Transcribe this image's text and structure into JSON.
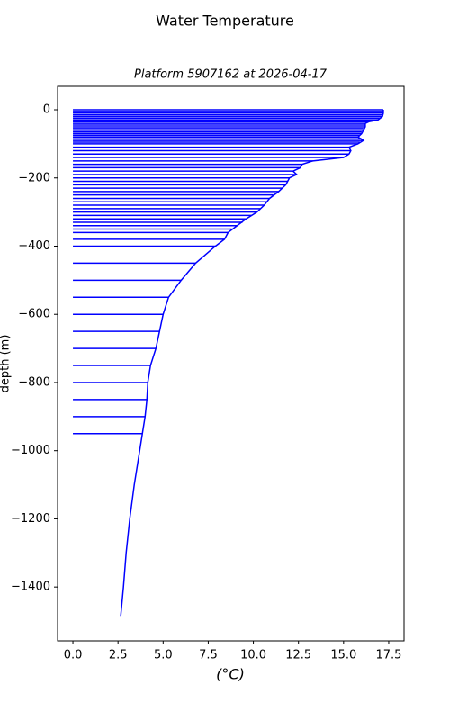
{
  "chart_data": {
    "type": "line",
    "title": "Water Temperature",
    "subtitle": "Platform 5907162 at 2026-04-17",
    "x_label": "(°C)",
    "y_label": "depth (m)",
    "xlim": [
      -0.85,
      18.35
    ],
    "ylim": [
      -1558,
      68.7
    ],
    "xticks": [
      {
        "value": 0,
        "label": "0.0"
      },
      2.5,
      {
        "value": 5,
        "label": "5.0"
      },
      7.5,
      {
        "value": 10,
        "label": "10.0"
      },
      12.5,
      {
        "value": 15,
        "label": "15.0"
      },
      17.5
    ],
    "yticks": [
      0,
      {
        "value": -200,
        "label": "−200"
      },
      {
        "value": -400,
        "label": "−400"
      },
      {
        "value": -600,
        "label": "−600"
      },
      {
        "value": -800,
        "label": "−800"
      },
      {
        "value": -1000,
        "label": "−1000"
      },
      {
        "value": -1200,
        "label": "−1200"
      },
      {
        "value": -1400,
        "label": "−1400"
      }
    ],
    "grid": false,
    "series": [
      {
        "style": "stems",
        "color": "#0000ff",
        "values": [
          17.2,
          17.2,
          17.2,
          17.2,
          17.15,
          17.0,
          16.9,
          16.4,
          16.2,
          16.2,
          16.2,
          16.1,
          16.1,
          16.0,
          16.0,
          15.9,
          15.8,
          16.0,
          16.1,
          15.9,
          15.8,
          15.3,
          15.4,
          15.3,
          15.0,
          13.3,
          12.7,
          12.6,
          12.2,
          12.4,
          12.0,
          11.9,
          11.8,
          11.6,
          11.4,
          11.1,
          10.9,
          10.8,
          10.6,
          10.4,
          10.2,
          9.9,
          9.6,
          9.4,
          9.1,
          8.8,
          8.6,
          8.4,
          7.9,
          6.8,
          6.0,
          5.3,
          5.0,
          4.8,
          4.6,
          4.3,
          4.15,
          4.1,
          4.0,
          3.85
        ],
        "depth": [
          0,
          -5,
          -10,
          -15,
          -20,
          -25,
          -30,
          -35,
          -40,
          -45,
          -50,
          -55,
          -60,
          -65,
          -70,
          -75,
          -80,
          -85,
          -90,
          -95,
          -100,
          -110,
          -120,
          -130,
          -140,
          -150,
          -160,
          -170,
          -180,
          -190,
          -200,
          -210,
          -220,
          -230,
          -240,
          -250,
          -260,
          -270,
          -280,
          -290,
          -300,
          -310,
          -320,
          -330,
          -340,
          -350,
          -360,
          -380,
          -400,
          -450,
          -500,
          -550,
          -600,
          -650,
          -700,
          -750,
          -800,
          -850,
          -900,
          -950
        ]
      },
      {
        "style": "profile",
        "color": "#0000ff",
        "values": [
          17.2,
          17.2,
          17.2,
          17.15,
          16.9,
          16.4,
          16.2,
          16.2,
          16.1,
          16.0,
          15.8,
          16.1,
          15.8,
          15.3,
          15.4,
          15.3,
          15.0,
          13.3,
          12.7,
          12.6,
          12.2,
          12.4,
          12.0,
          11.8,
          11.4,
          10.9,
          10.6,
          10.2,
          9.6,
          9.1,
          8.6,
          8.4,
          7.9,
          6.8,
          6.0,
          5.3,
          5.0,
          4.8,
          4.6,
          4.3,
          4.15,
          4.1,
          4.0,
          3.85,
          3.7,
          3.4,
          3.15,
          2.95,
          2.8,
          2.65
        ],
        "depth": [
          0,
          -5,
          -10,
          -20,
          -30,
          -35,
          -40,
          -50,
          -60,
          -70,
          -80,
          -90,
          -100,
          -110,
          -120,
          -130,
          -140,
          -150,
          -160,
          -170,
          -180,
          -190,
          -200,
          -220,
          -240,
          -260,
          -280,
          -300,
          -320,
          -340,
          -360,
          -380,
          -400,
          -450,
          -500,
          -550,
          -600,
          -650,
          -700,
          -750,
          -800,
          -850,
          -900,
          -950,
          -1000,
          -1100,
          -1200,
          -1300,
          -1400,
          -1485
        ]
      }
    ]
  }
}
